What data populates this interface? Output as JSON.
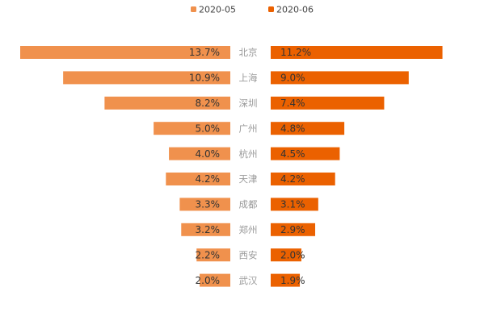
{
  "chart_data": {
    "type": "bar",
    "subtype": "mirrored-horizontal",
    "title": "",
    "legend_position": "top-center",
    "categories": [
      "北京",
      "上海",
      "深圳",
      "广州",
      "杭州",
      "天津",
      "成都",
      "郑州",
      "西安",
      "武汉"
    ],
    "series": [
      {
        "name": "2020-05",
        "color": "#f0914d",
        "direction": "left",
        "values": [
          13.7,
          10.9,
          8.2,
          5.0,
          4.0,
          4.2,
          3.3,
          3.2,
          2.2,
          2.0
        ],
        "labels": [
          "13.7%",
          "10.9%",
          "8.2%",
          "5.0%",
          "4.0%",
          "4.2%",
          "3.3%",
          "3.2%",
          "2.2%",
          "2.0%"
        ]
      },
      {
        "name": "2020-06",
        "color": "#eb6100",
        "direction": "right",
        "values": [
          11.2,
          9.0,
          7.4,
          4.8,
          4.5,
          4.2,
          3.1,
          2.9,
          2.0,
          1.9
        ],
        "labels": [
          "11.2%",
          "9.0%",
          "7.4%",
          "4.8%",
          "4.5%",
          "4.2%",
          "3.1%",
          "2.9%",
          "2.0%",
          "1.9%"
        ]
      }
    ],
    "xlim": [
      0,
      13.7
    ],
    "unit": "%"
  }
}
